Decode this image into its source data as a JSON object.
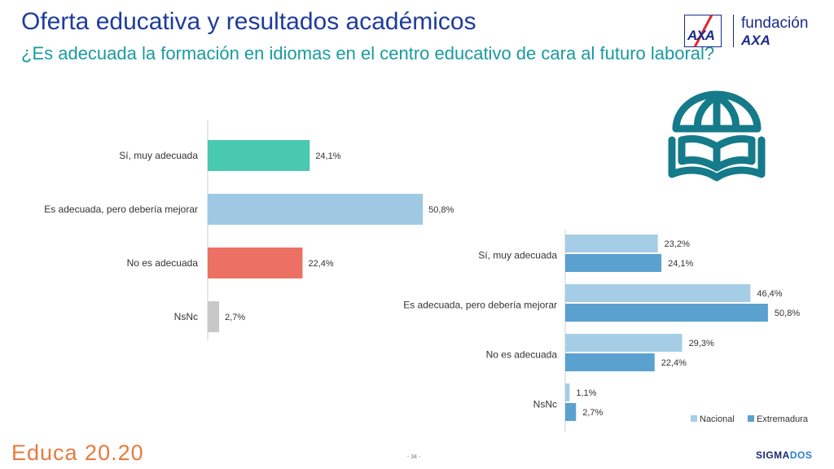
{
  "header": {
    "title": "Oferta educativa y resultados académicos",
    "subtitle": "¿Es adecuada la formación en idiomas en el centro educativo de cara al futuro laboral?"
  },
  "logo": {
    "axa": "AXA",
    "fund_line1": "fundación",
    "fund_line2": "AXA"
  },
  "icons": {
    "book_globe": "open-book-globe-icon"
  },
  "colors": {
    "title": "#1f3c9c",
    "subtitle": "#1a9aa0",
    "si_muy": "#48c9b0",
    "es_adecuada": "#9fc8e3",
    "no_adecuada": "#ec7063",
    "nsnc": "#c8c8c8",
    "nacional": "#a6cde6",
    "extremadura": "#5aa1cf",
    "icon": "#157a8a"
  },
  "chart_data": [
    {
      "type": "bar",
      "orientation": "horizontal",
      "categories": [
        "Sí, muy adecuada",
        "Es adecuada, pero debería mejorar",
        "No es adecuada",
        "NsNc"
      ],
      "values": [
        24.1,
        50.8,
        22.4,
        2.7
      ],
      "value_labels": [
        "24,1%",
        "50,8%",
        "22,4%",
        "2,7%"
      ],
      "xlim": [
        0,
        55
      ]
    },
    {
      "type": "bar",
      "orientation": "horizontal",
      "categories": [
        "Sí, muy adecuada",
        "Es adecuada, pero debería mejorar",
        "No es adecuada",
        "NsNc"
      ],
      "series": [
        {
          "name": "Nacional",
          "values": [
            23.2,
            46.4,
            29.3,
            1.1
          ],
          "labels": [
            "23,2%",
            "46,4%",
            "29,3%",
            "1,1%"
          ]
        },
        {
          "name": "Extremadura",
          "values": [
            24.1,
            50.8,
            22.4,
            2.7
          ],
          "labels": [
            "24,1%",
            "50,8%",
            "22,4%",
            "2,7%"
          ]
        }
      ],
      "legend_position": "bottom-right",
      "xlim": [
        0,
        55
      ]
    }
  ],
  "footer": {
    "brand_left": "Educa 20.20",
    "page": "- 34 -",
    "brand_right_1": "SIGMA",
    "brand_right_2": "DOS"
  }
}
